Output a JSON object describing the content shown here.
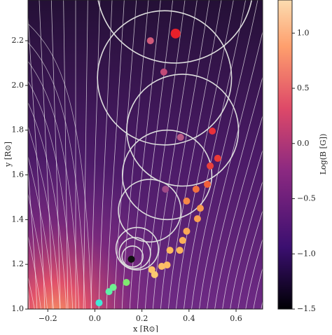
{
  "chart_data": {
    "type": "scatter",
    "xlabel": "x [R⊙]",
    "ylabel": "y [R⊙]",
    "xlim": [
      -0.284,
      0.713
    ],
    "ylim": [
      1.0,
      2.382
    ],
    "xticks": [
      {
        "value": -0.2,
        "label": "−0.2"
      },
      {
        "value": 0,
        "label": "0.0"
      },
      0.2,
      0.4,
      0.6
    ],
    "yticks": [
      {
        "value": 1.0,
        "label": "1.0"
      },
      1.2,
      1.4,
      1.6,
      1.8,
      {
        "value": 2.0,
        "label": "2.0"
      },
      2.2
    ],
    "series": [
      {
        "x": [
          0.343,
          0.236,
          0.293,
          0.499,
          0.364,
          0.522,
          0.49,
          0.3,
          0.478,
          0.43,
          0.39,
          0.448,
          0.436,
          0.39,
          0.373,
          0.319,
          0.361,
          0.284,
          0.307,
          0.242,
          0.254,
          0.155,
          0.134,
          0.078,
          0.06,
          0.018
        ],
        "y": [
          2.232,
          2.2,
          2.06,
          1.796,
          1.768,
          1.674,
          1.64,
          1.536,
          1.558,
          1.536,
          1.483,
          1.451,
          1.404,
          1.348,
          1.307,
          1.263,
          1.263,
          1.191,
          1.197,
          1.176,
          1.154,
          1.223,
          1.119,
          1.097,
          1.078,
          1.028
        ],
        "colors": [
          "#e8202a",
          "#d05a7a",
          "#c04a78",
          "#e8303a",
          "#b85a88",
          "#ea3a38",
          "#e8403c",
          "#a04a88",
          "#f0603c",
          "#f27040",
          "#f48848",
          "#f79a50",
          "#f8a052",
          "#f9a856",
          "#fab05a",
          "#fbb860",
          "#fbb45c",
          "#fcc068",
          "#fcbc64",
          "#fcc46a",
          "#fcc870",
          "#111111",
          "#80e870",
          "#70f090",
          "#60f0a8",
          "#40e8d8"
        ]
      }
    ],
    "circles": {
      "x": [
        0.34,
        0.296,
        0.373,
        0.307,
        0.233,
        0.18,
        0.17,
        0.16
      ],
      "y": [
        2.45,
        2.034,
        1.8,
        1.6,
        1.44,
        1.27,
        1.25,
        1.235
      ],
      "r": [
        0.35,
        0.3,
        0.25,
        0.2,
        0.14,
        0.095,
        0.07,
        0.047
      ]
    },
    "colorbar": {
      "label": "Log(B [G])",
      "lim": [
        -1.5,
        1.3
      ],
      "ticks": [
        {
          "value": -1.5,
          "label": "−1.5"
        },
        {
          "value": -1.0,
          "label": "−1.0"
        },
        {
          "value": -0.5,
          "label": "−0.5"
        },
        {
          "value": 0,
          "label": "0.0"
        },
        0.5,
        {
          "value": 1.0,
          "label": "1.0"
        }
      ]
    }
  }
}
